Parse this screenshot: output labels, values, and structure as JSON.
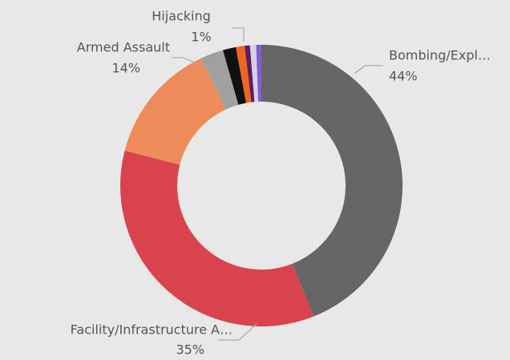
{
  "chart_data": {
    "type": "donut",
    "categories": [
      "Bombing/Expl…",
      "Facility/Infrastructure A…",
      "Armed Assault",
      null,
      null,
      "Hijacking",
      null,
      null,
      null
    ],
    "values": [
      44,
      35,
      14,
      2.6,
      1.5,
      1,
      0.6,
      0.7,
      0.6
    ],
    "value_labels": [
      "44%",
      "35%",
      "14%",
      null,
      null,
      "1%",
      null,
      null,
      null
    ],
    "colors": [
      "#666666",
      "#d9434e",
      "#ee8b5a",
      "#a0a0a0",
      "#111111",
      "#f0641e",
      "#5a1f5a",
      "#d8cfee",
      "#7f5fd0"
    ]
  }
}
